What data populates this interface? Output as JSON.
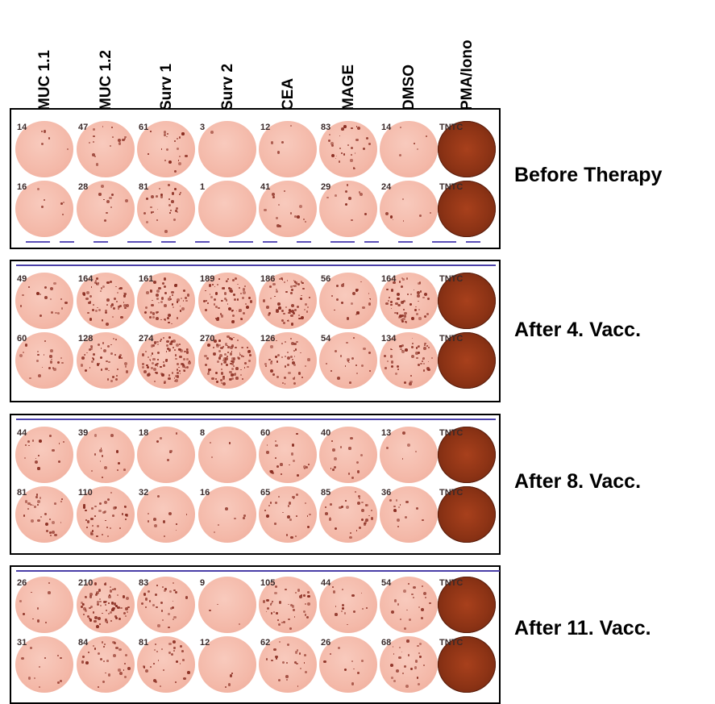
{
  "columns": [
    "MUC 1.1",
    "MUC 1.2",
    "Surv 1",
    "Surv 2",
    "CEA",
    "MAGE",
    "DMSO",
    "PMA/Iono"
  ],
  "plates": [
    {
      "label": "Before Therapy",
      "rows": [
        [
          "14",
          "47",
          "61",
          "3",
          "12",
          "83",
          "14",
          "TNTC"
        ],
        [
          "16",
          "28",
          "81",
          "1",
          "41",
          "29",
          "24",
          "TNTC"
        ]
      ]
    },
    {
      "label": "After 4. Vacc.",
      "rows": [
        [
          "49",
          "164",
          "161",
          "189",
          "186",
          "56",
          "164",
          "TNTC"
        ],
        [
          "60",
          "128",
          "274",
          "270",
          "126",
          "54",
          "134",
          "TNTC"
        ]
      ]
    },
    {
      "label": "After 8. Vacc.",
      "rows": [
        [
          "44",
          "39",
          "18",
          "8",
          "60",
          "40",
          "13",
          "TNTC"
        ],
        [
          "81",
          "110",
          "32",
          "16",
          "65",
          "85",
          "36",
          "TNTC"
        ]
      ]
    },
    {
      "label": "After 11. Vacc.",
      "rows": [
        [
          "26",
          "210",
          "83",
          "9",
          "105",
          "44",
          "54",
          "TNTC"
        ],
        [
          "31",
          "84",
          "81",
          "12",
          "62",
          "26",
          "68",
          "TNTC"
        ]
      ]
    }
  ],
  "colors": {
    "well_light": "#f8cabd",
    "well_mid": "#eeaa98",
    "well_dark_center": "#a8401c",
    "well_dark_edge": "#6e2510",
    "spot": "#8a2e22"
  }
}
